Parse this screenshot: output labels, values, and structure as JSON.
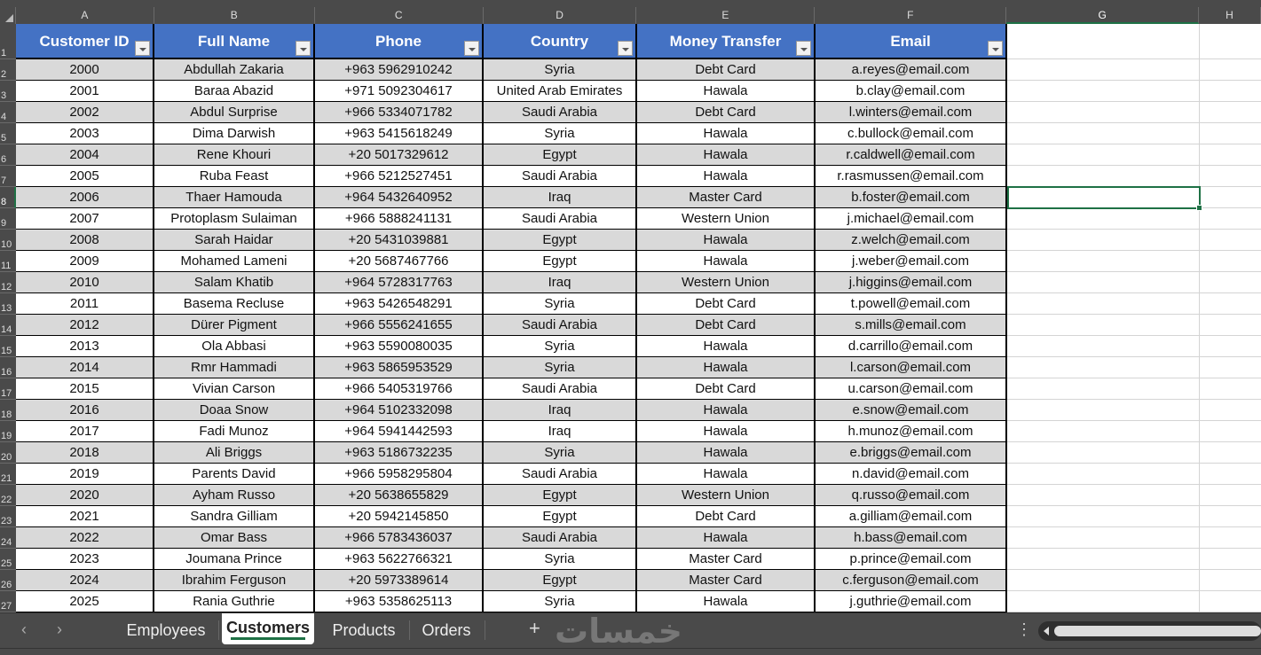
{
  "columns": [
    "A",
    "B",
    "C",
    "D",
    "E",
    "F",
    "G",
    "H"
  ],
  "table": {
    "headers": [
      "Customer ID",
      "Full Name",
      "Phone",
      "Country",
      "Money Transfer",
      "Email"
    ],
    "rows": [
      [
        "2000",
        "Abdullah Zakaria",
        "+963 5962910242",
        "Syria",
        "Debt Card",
        "a.reyes@email.com"
      ],
      [
        "2001",
        "Baraa Abazid",
        "+971 5092304617",
        "United Arab Emirates",
        "Hawala",
        "b.clay@email.com"
      ],
      [
        "2002",
        "Abdul Surprise",
        "+966 5334071782",
        "Saudi Arabia",
        "Debt Card",
        "l.winters@email.com"
      ],
      [
        "2003",
        "Dima Darwish",
        "+963 5415618249",
        "Syria",
        "Hawala",
        "c.bullock@email.com"
      ],
      [
        "2004",
        "Rene Khouri",
        "+20 5017329612",
        "Egypt",
        "Hawala",
        "r.caldwell@email.com"
      ],
      [
        "2005",
        "Ruba Feast",
        "+966 5212527451",
        "Saudi Arabia",
        "Hawala",
        "r.rasmussen@email.com"
      ],
      [
        "2006",
        "Thaer Hamouda",
        "+964 5432640952",
        "Iraq",
        "Master Card",
        "b.foster@email.com"
      ],
      [
        "2007",
        "Protoplasm Sulaiman",
        "+966 5888241131",
        "Saudi Arabia",
        "Western Union",
        "j.michael@email.com"
      ],
      [
        "2008",
        "Sarah Haidar",
        "+20 5431039881",
        "Egypt",
        "Hawala",
        "z.welch@email.com"
      ],
      [
        "2009",
        "Mohamed Lameni",
        "+20 5687467766",
        "Egypt",
        "Hawala",
        "j.weber@email.com"
      ],
      [
        "2010",
        "Salam Khatib",
        "+964 5728317763",
        "Iraq",
        "Western Union",
        "j.higgins@email.com"
      ],
      [
        "2011",
        "Basema Recluse",
        "+963 5426548291",
        "Syria",
        "Debt Card",
        "t.powell@email.com"
      ],
      [
        "2012",
        "Dürer Pigment",
        "+966 5556241655",
        "Saudi Arabia",
        "Debt Card",
        "s.mills@email.com"
      ],
      [
        "2013",
        "Ola Abbasi",
        "+963 5590080035",
        "Syria",
        "Hawala",
        "d.carrillo@email.com"
      ],
      [
        "2014",
        "Rmr Hammadi",
        "+963 5865953529",
        "Syria",
        "Hawala",
        "l.carson@email.com"
      ],
      [
        "2015",
        "Vivian Carson",
        "+966 5405319766",
        "Saudi Arabia",
        "Debt Card",
        "u.carson@email.com"
      ],
      [
        "2016",
        "Doaa Snow",
        "+964 5102332098",
        "Iraq",
        "Hawala",
        "e.snow@email.com"
      ],
      [
        "2017",
        "Fadi Munoz",
        "+964 5941442593",
        "Iraq",
        "Hawala",
        "h.munoz@email.com"
      ],
      [
        "2018",
        "Ali Briggs",
        "+963 5186732235",
        "Syria",
        "Hawala",
        "e.briggs@email.com"
      ],
      [
        "2019",
        "Parents David",
        "+966 5958295804",
        "Saudi Arabia",
        "Hawala",
        "n.david@email.com"
      ],
      [
        "2020",
        "Ayham Russo",
        "+20 5638655829",
        "Egypt",
        "Western Union",
        "q.russo@email.com"
      ],
      [
        "2021",
        "Sandra Gilliam",
        "+20 5942145850",
        "Egypt",
        "Debt Card",
        "a.gilliam@email.com"
      ],
      [
        "2022",
        "Omar Bass",
        "+966 5783436037",
        "Saudi Arabia",
        "Hawala",
        "h.bass@email.com"
      ],
      [
        "2023",
        "Joumana Prince",
        "+963 5622766321",
        "Syria",
        "Master Card",
        "p.prince@email.com"
      ],
      [
        "2024",
        "Ibrahim Ferguson",
        "+20 5973389614",
        "Egypt",
        "Master Card",
        "c.ferguson@email.com"
      ],
      [
        "2025",
        "Rania Guthrie",
        "+963 5358625113",
        "Syria",
        "Hawala",
        "j.guthrie@email.com"
      ]
    ]
  },
  "selected_cell": "G8",
  "sheet_tabs": [
    {
      "label": "Employees",
      "active": false
    },
    {
      "label": "Customers",
      "active": true
    },
    {
      "label": "Products",
      "active": false
    },
    {
      "label": "Orders",
      "active": false
    }
  ],
  "add_sheet": "+",
  "watermark": "خمسات",
  "colors": {
    "header_bg": "#4472c4",
    "band": "#d9d9d9",
    "accent": "#1e7145"
  }
}
